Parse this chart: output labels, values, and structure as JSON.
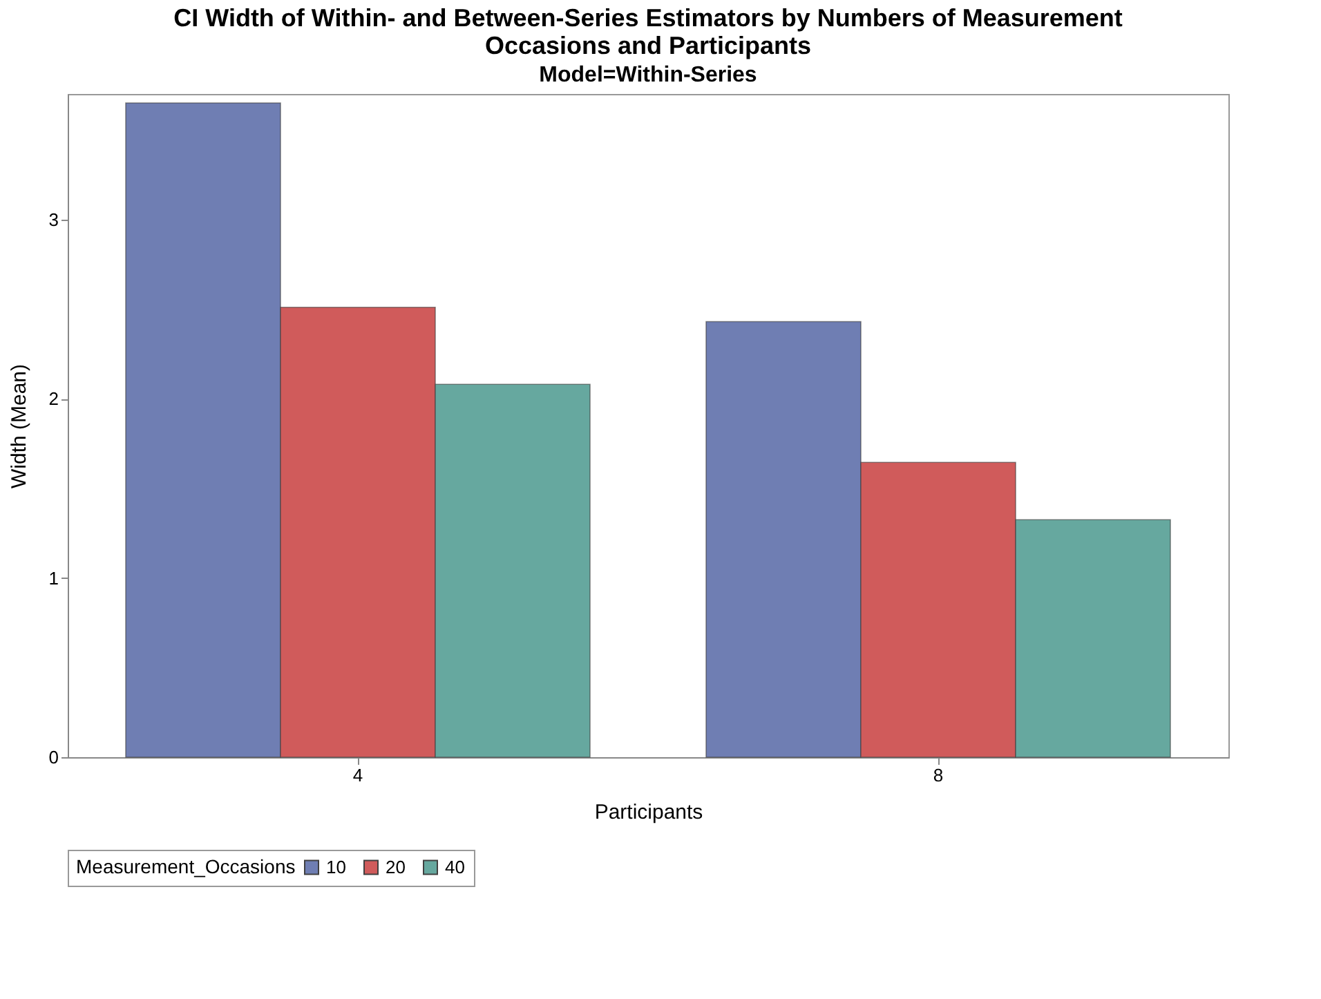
{
  "chart_data": {
    "type": "bar",
    "title": "CI Width of Within- and Between-Series Estimators by Numbers of Measurement Occasions and Participants",
    "subtitle": "Model=Within-Series",
    "xlabel": "Participants",
    "ylabel": "Width (Mean)",
    "legend_title": "Measurement_Occasions",
    "categories": [
      "4",
      "8"
    ],
    "series": [
      {
        "name": "10",
        "color": "#6f7eb3",
        "values": [
          3.65,
          2.43
        ]
      },
      {
        "name": "20",
        "color": "#d05b5b",
        "values": [
          2.51,
          1.645
        ]
      },
      {
        "name": "40",
        "color": "#66a89f",
        "values": [
          2.08,
          1.325
        ]
      }
    ],
    "ylim": [
      0,
      3.7
    ],
    "yticks": [
      0,
      1,
      2,
      3
    ],
    "grid": false,
    "legend": "bottom"
  }
}
